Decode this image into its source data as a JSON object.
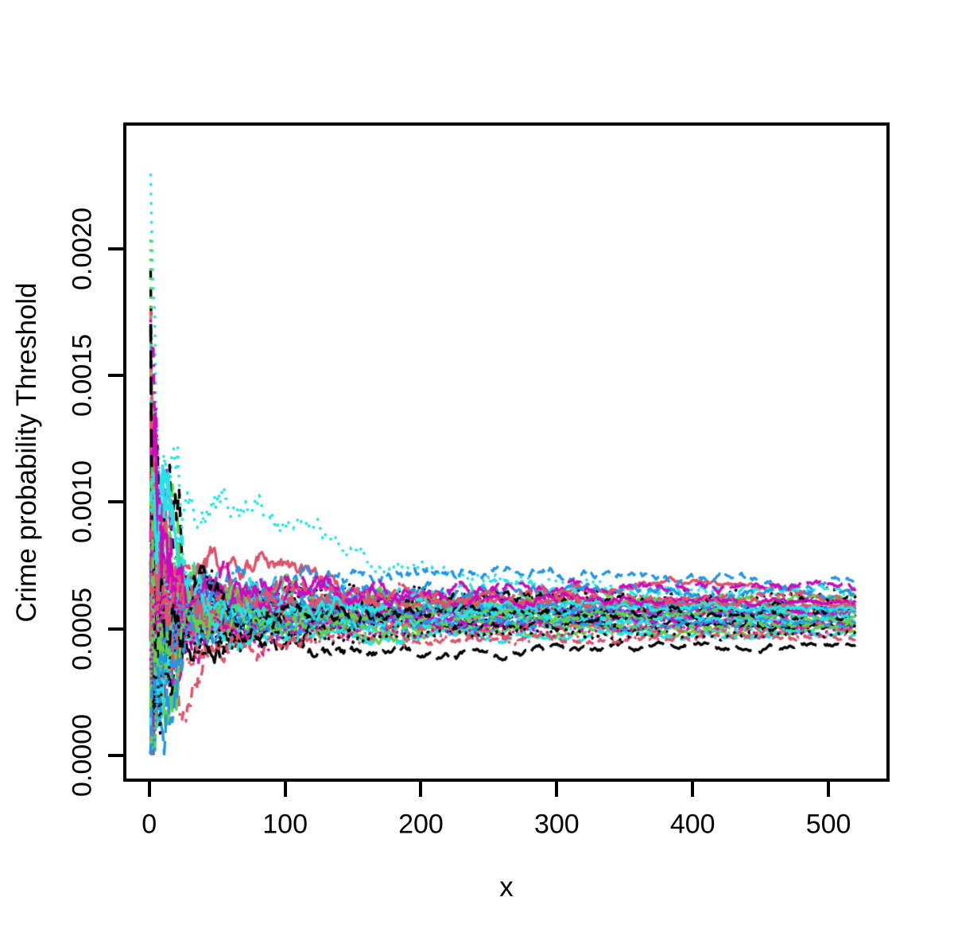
{
  "figure": {
    "background": "#ffffff",
    "title": ""
  },
  "chart_data": {
    "type": "line",
    "title": "",
    "xlabel": "x",
    "ylabel": "Crime probability Threshold",
    "xlim": [
      -18,
      545
    ],
    "ylim": [
      -0.000104,
      0.002493
    ],
    "x_data_range": [
      1,
      520
    ],
    "x_ticks": [
      0,
      100,
      200,
      300,
      400,
      500
    ],
    "x_tick_labels": [
      "0",
      "100",
      "200",
      "300",
      "400",
      "500"
    ],
    "y_ticks": [
      0.0,
      0.0005,
      0.001,
      0.0015,
      0.002
    ],
    "y_tick_labels": [
      "0.0000",
      "0.0005",
      "0.0010",
      "0.0015",
      "0.0020"
    ],
    "grid": false,
    "legend": null,
    "description": "About 48 stochastic running-estimate traces of a crime probability threshold. Traces are highly variable near x=0 (spanning 0 to 0.0024, with a black dashed spike reaching 0.0024) and converge by x=520 into a dense band between about 0.00043 and 0.00068.",
    "palette": {
      "black": "#000000",
      "red": "#DF536B",
      "green": "#61D04F",
      "blue": "#2297E6",
      "cyan": "#28E2E5",
      "magenta": "#CD0BBC"
    },
    "line_width": 3.4,
    "dash_patterns": {
      "solid": [],
      "dashed": [
        13,
        10
      ],
      "dotted": [
        3.4,
        8.5
      ],
      "dotdash": [
        3.4,
        8.5,
        13.6,
        8.5
      ],
      "longdash": [
        23,
        10
      ]
    },
    "series": [
      {
        "color": "black",
        "line_type": "dashed",
        "start": 0.00239,
        "final": 0.00052,
        "seed": 11
      },
      {
        "color": "red",
        "line_type": "dotdash",
        "start": 0.0004,
        "final": 0.00052,
        "seed": 12,
        "bumps": [
          [
            22,
            -0.00035,
            16
          ]
        ]
      },
      {
        "color": "green",
        "line_type": "dotted",
        "start": 0.00115,
        "final": 0.00054,
        "seed": 13
      },
      {
        "color": "blue",
        "line_type": "solid",
        "start": 0.00105,
        "final": 0.00056,
        "seed": 14
      },
      {
        "color": "cyan",
        "line_type": "dotted",
        "start": 0.00163,
        "final": 0.00062,
        "seed": 15,
        "bumps": [
          [
            55,
            0.00028,
            55
          ],
          [
            170,
            0.00011,
            110
          ]
        ]
      },
      {
        "color": "magenta",
        "line_type": "longdash",
        "start": 0.00125,
        "final": 0.000575,
        "seed": 16
      },
      {
        "color": "black",
        "line_type": "longdash",
        "start": 0.0005,
        "final": 0.000435,
        "seed": 17,
        "bumps": [
          [
            200,
            -4e-05,
            110
          ]
        ]
      },
      {
        "color": "red",
        "line_type": "solid",
        "start": 0.0,
        "final": 0.00057,
        "seed": 18,
        "bumps": [
          [
            75,
            0.00019,
            60
          ],
          [
            390,
            0.00011,
            90
          ]
        ]
      },
      {
        "color": "green",
        "line_type": "solid",
        "start": 0.0002,
        "final": 0.00049,
        "seed": 19
      },
      {
        "color": "blue",
        "line_type": "dashed",
        "start": 0.001,
        "final": 0.00067,
        "seed": 20,
        "bumps": [
          [
            265,
            5e-05,
            140
          ]
        ]
      },
      {
        "color": "cyan",
        "line_type": "dotdash",
        "start": 0.0007,
        "final": 0.00059,
        "seed": 21
      },
      {
        "color": "magenta",
        "line_type": "solid",
        "start": 0.0003,
        "final": 0.00057,
        "seed": 22,
        "amp": 0.8
      },
      {
        "color": "black",
        "line_type": "dotted",
        "start": 0.0009,
        "final": 0.00063,
        "seed": 23
      },
      {
        "color": "red",
        "line_type": "dashed",
        "start": 0.0016,
        "final": 0.00055,
        "seed": 24
      },
      {
        "color": "green",
        "line_type": "dotdash",
        "start": 0.0001,
        "final": 0.0005,
        "seed": 25
      },
      {
        "color": "blue",
        "line_type": "dotted",
        "start": 0.0013,
        "final": 0.00061,
        "seed": 26
      },
      {
        "color": "cyan",
        "line_type": "solid",
        "start": 0.0,
        "final": 0.00053,
        "seed": 27
      },
      {
        "color": "magenta",
        "line_type": "dotted",
        "start": 0.0008,
        "final": 0.00058,
        "seed": 28
      },
      {
        "color": "black",
        "line_type": "solid",
        "start": 0.0006,
        "final": 0.00051,
        "seed": 29
      },
      {
        "color": "red",
        "line_type": "dotted",
        "start": 0.0002,
        "final": 0.00047,
        "seed": 30
      },
      {
        "color": "green",
        "line_type": "dashed",
        "start": 0.0014,
        "final": 0.0006,
        "seed": 31
      },
      {
        "color": "blue",
        "line_type": "dotdash",
        "start": 0.0004,
        "final": 0.00054,
        "seed": 32
      },
      {
        "color": "cyan",
        "line_type": "dashed",
        "start": 0.0011,
        "final": 0.00065,
        "seed": 33
      },
      {
        "color": "magenta",
        "line_type": "dashed",
        "start": 0.0001,
        "final": 0.00056,
        "seed": 34
      },
      {
        "color": "black",
        "line_type": "dotdash",
        "start": 0.0007,
        "final": 0.00058,
        "seed": 35
      },
      {
        "color": "red",
        "line_type": "longdash",
        "start": 0.00185,
        "final": 0.0005,
        "seed": 36
      },
      {
        "color": "green",
        "line_type": "longdash",
        "start": 0.0003,
        "final": 0.00062,
        "seed": 37
      },
      {
        "color": "blue",
        "line_type": "longdash",
        "start": 0.0009,
        "final": 0.00064,
        "seed": 38
      },
      {
        "color": "cyan",
        "line_type": "longdash",
        "start": 0.0005,
        "final": 0.000475,
        "seed": 39
      },
      {
        "color": "magenta",
        "line_type": "dotdash",
        "start": 0.0012,
        "final": 0.00053,
        "seed": 40
      },
      {
        "color": "black",
        "line_type": "dashed",
        "start": 0.0002,
        "final": 0.00061,
        "seed": 41
      },
      {
        "color": "red",
        "line_type": "dashed",
        "start": 0.0008,
        "final": 0.00046,
        "seed": 42
      },
      {
        "color": "green",
        "line_type": "dotted",
        "start": 0.00155,
        "final": 0.00057,
        "seed": 43
      },
      {
        "color": "blue",
        "line_type": "solid",
        "start": 0.0001,
        "final": 0.00059,
        "seed": 44
      },
      {
        "color": "cyan",
        "line_type": "dotted",
        "start": 0.0006,
        "final": 0.0005,
        "seed": 45
      },
      {
        "color": "magenta",
        "line_type": "longdash",
        "start": 0.001,
        "final": 0.00066,
        "seed": 46
      },
      {
        "color": "black",
        "line_type": "dotted",
        "start": 0.0004,
        "final": 0.00048,
        "seed": 47
      },
      {
        "color": "red",
        "line_type": "solid",
        "start": 0.0013,
        "final": 0.0006,
        "seed": 48
      },
      {
        "color": "green",
        "line_type": "solid",
        "start": 0.0007,
        "final": 0.00055,
        "seed": 49
      },
      {
        "color": "blue",
        "line_type": "dashed",
        "start": 0.0,
        "final": 0.00052,
        "seed": 50
      },
      {
        "color": "cyan",
        "line_type": "solid",
        "start": 0.0015,
        "final": 0.00058,
        "seed": 51
      },
      {
        "color": "magenta",
        "line_type": "solid",
        "start": 0.0005,
        "final": 0.00062,
        "seed": 52
      },
      {
        "color": "black",
        "line_type": "longdash",
        "start": 0.0011,
        "final": 0.00055,
        "seed": 53
      },
      {
        "color": "red",
        "line_type": "dotdash",
        "start": 0.0003,
        "final": 0.00063,
        "seed": 54
      },
      {
        "color": "green",
        "line_type": "dashed",
        "start": 0.0008,
        "final": 0.00051,
        "seed": 55
      },
      {
        "color": "blue",
        "line_type": "dotted",
        "start": 0.0002,
        "final": 0.00056,
        "seed": 56
      },
      {
        "color": "cyan",
        "line_type": "dotdash",
        "start": 0.0012,
        "final": 0.00054,
        "seed": 57
      },
      {
        "color": "magenta",
        "line_type": "dotted",
        "start": 0.0006,
        "final": 0.00049,
        "seed": 58
      }
    ]
  }
}
